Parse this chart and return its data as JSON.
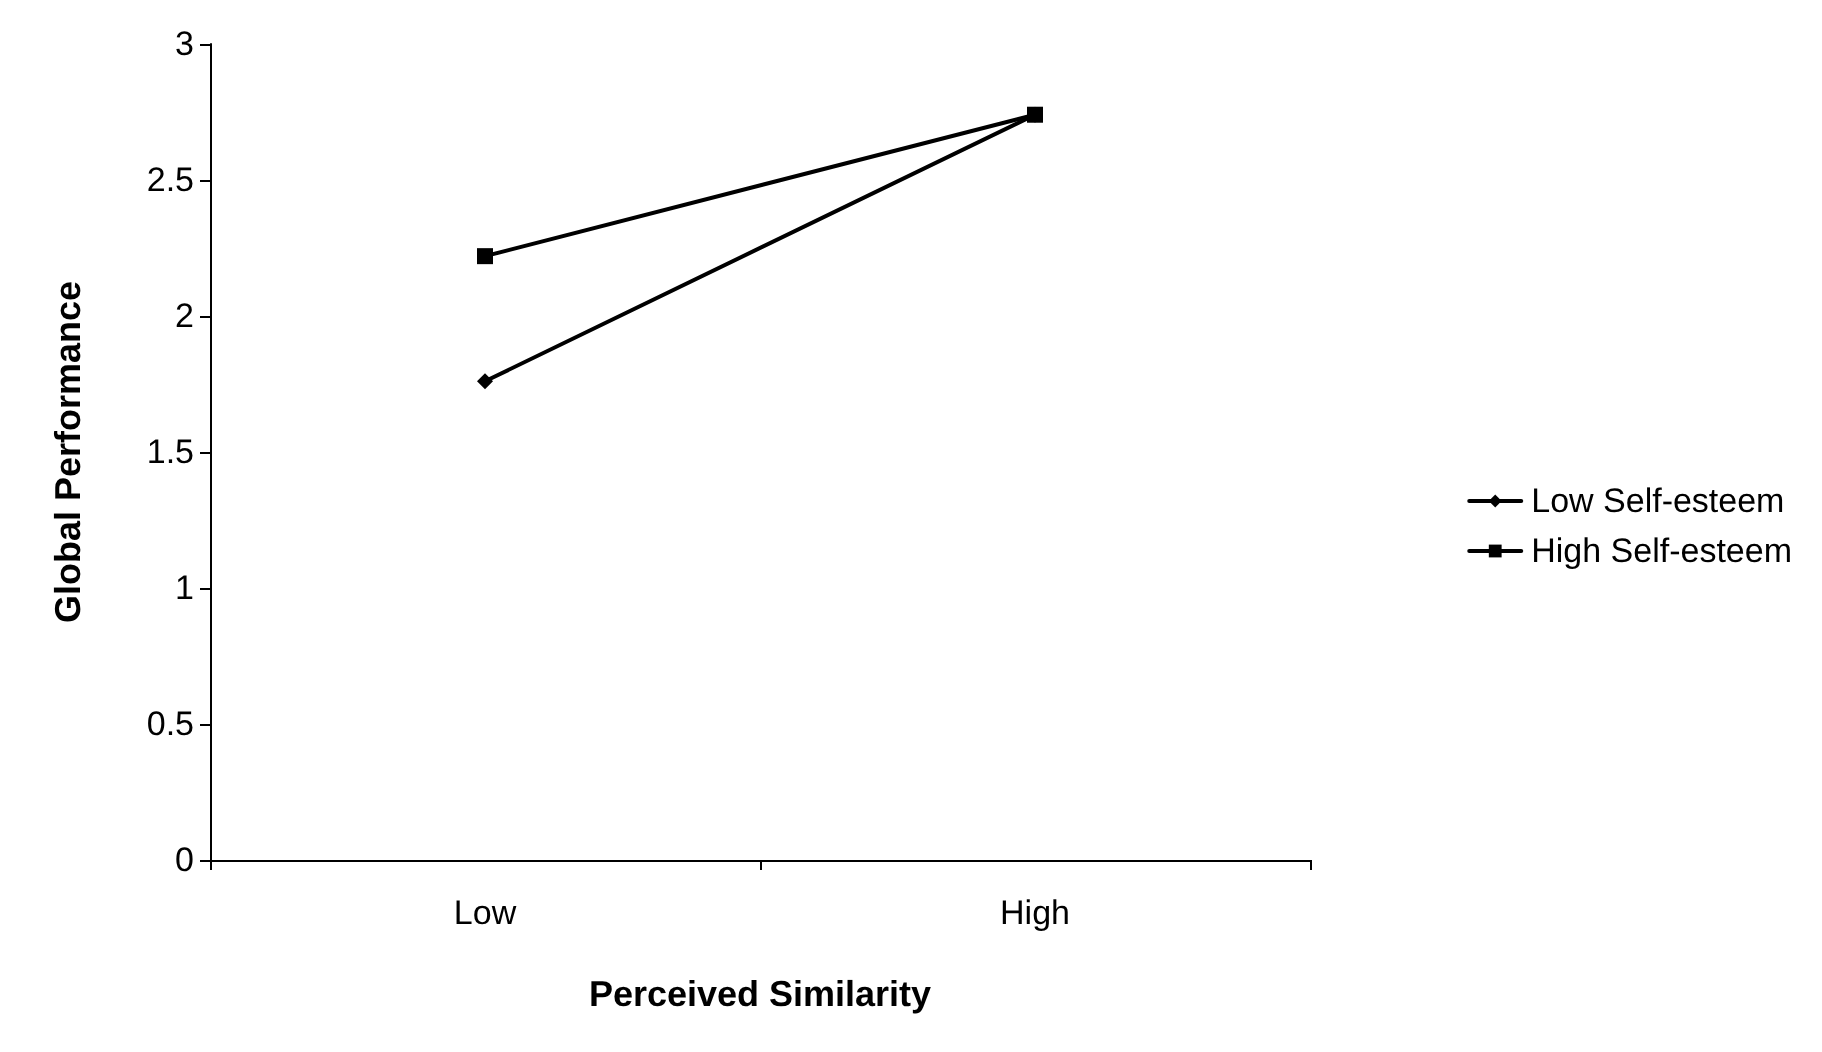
{
  "chart_data": {
    "type": "line",
    "xlabel": "Perceived Similarity",
    "ylabel": "Global Performance",
    "categories": [
      "Low",
      "High"
    ],
    "series": [
      {
        "name": "Low Self-esteem",
        "color": "#000000",
        "marker": "diamond",
        "values": [
          1.76,
          2.74
        ]
      },
      {
        "name": "High Self-esteem",
        "color": "#000000",
        "marker": "square",
        "values": [
          2.22,
          2.74
        ]
      }
    ],
    "ylim": [
      0,
      3
    ],
    "yticks": [
      0,
      0.5,
      1,
      1.5,
      2,
      2.5,
      3
    ],
    "grid": false,
    "legend": "right",
    "line_style": "solid"
  }
}
